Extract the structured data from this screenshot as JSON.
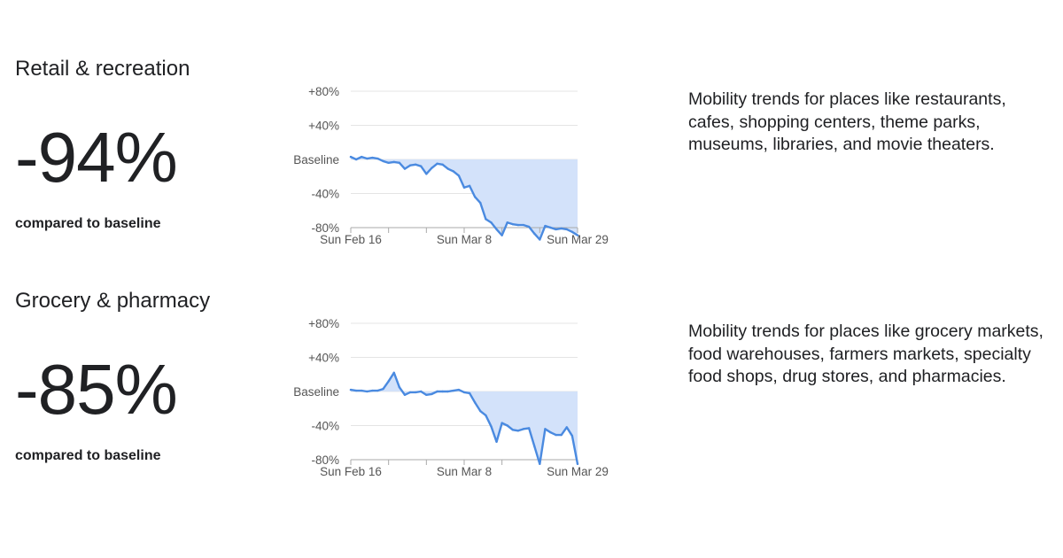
{
  "panels": [
    {
      "title": "Retail & recreation",
      "change": "-94%",
      "compared": "compared to baseline",
      "description": "Mobility trends for places like restaurants, cafes, shopping centers, theme parks, museums, libraries, and movie theaters."
    },
    {
      "title": "Grocery & pharmacy",
      "change": "-85%",
      "compared": "compared to baseline",
      "description": "Mobility trends for places like grocery markets, food warehouses, farmers markets, specialty food shops, drug stores, and pharmacies."
    }
  ],
  "colors": {
    "line": "#4a8ae0",
    "fill": "#d3e2fa",
    "grid": "#e4e4e4",
    "axis": "#aaaaaa",
    "text": "#202124"
  },
  "chart_data": [
    {
      "type": "area",
      "x_tick_labels": [
        "Sun Feb 16",
        "Sun Mar 8",
        "Sun Mar 29"
      ],
      "x_tick_days": [
        0,
        21,
        42
      ],
      "y_tick_labels": [
        "+80%",
        "+40%",
        "Baseline",
        "-40%",
        "-80%"
      ],
      "y_tick_values": [
        80,
        40,
        0,
        -40,
        -80
      ],
      "ylim": [
        -80,
        80
      ],
      "grid": true,
      "x": [
        0,
        1,
        2,
        3,
        4,
        5,
        6,
        7,
        8,
        9,
        10,
        11,
        12,
        13,
        14,
        15,
        16,
        17,
        18,
        19,
        20,
        21,
        22,
        23,
        24,
        25,
        26,
        27,
        28,
        29,
        30,
        31,
        32,
        33,
        34,
        35,
        36,
        37,
        38,
        39,
        40,
        41,
        42
      ],
      "values": [
        3,
        0,
        3,
        1,
        2,
        1,
        -2,
        -4,
        -3,
        -4,
        -11,
        -7,
        -6,
        -8,
        -17,
        -10,
        -5,
        -6,
        -11,
        -14,
        -19,
        -33,
        -31,
        -44,
        -51,
        -70,
        -74,
        -82,
        -89,
        -74,
        -76,
        -77,
        -77,
        -79,
        -87,
        -94,
        -78,
        -80,
        -82,
        -81,
        -82,
        -85,
        -89
      ]
    },
    {
      "type": "area",
      "x_tick_labels": [
        "Sun Feb 16",
        "Sun Mar 8",
        "Sun Mar 29"
      ],
      "x_tick_days": [
        0,
        21,
        42
      ],
      "y_tick_labels": [
        "+80%",
        "+40%",
        "Baseline",
        "-40%",
        "-80%"
      ],
      "y_tick_values": [
        80,
        40,
        0,
        -40,
        -80
      ],
      "ylim": [
        -80,
        80
      ],
      "grid": true,
      "x": [
        0,
        1,
        2,
        3,
        4,
        5,
        6,
        7,
        8,
        9,
        10,
        11,
        12,
        13,
        14,
        15,
        16,
        17,
        18,
        19,
        20,
        21,
        22,
        23,
        24,
        25,
        26,
        27,
        28,
        29,
        30,
        31,
        32,
        33,
        34,
        35,
        36,
        37,
        38,
        39,
        40,
        41,
        42
      ],
      "values": [
        2,
        1,
        1,
        0,
        1,
        1,
        3,
        12,
        22,
        5,
        -4,
        -1,
        -1,
        0,
        -4,
        -3,
        0,
        0,
        0,
        1,
        2,
        -1,
        -2,
        -13,
        -23,
        -28,
        -41,
        -59,
        -37,
        -40,
        -45,
        -46,
        -44,
        -43,
        -64,
        -85,
        -44,
        -48,
        -51,
        -51,
        -42,
        -52,
        -85
      ]
    }
  ]
}
